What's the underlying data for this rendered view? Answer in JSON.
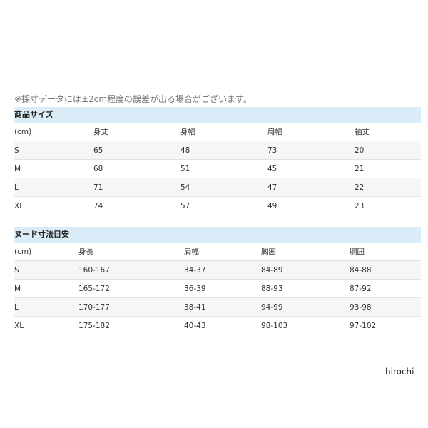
{
  "note": "※採寸データには±2cm程度の誤差が出る場合がございます。",
  "product_size": {
    "title": "商品サイズ",
    "headers": [
      "(cm)",
      "身丈",
      "身幅",
      "肩幅",
      "袖丈"
    ],
    "rows": [
      [
        "S",
        "65",
        "48",
        "73",
        "20"
      ],
      [
        "M",
        "68",
        "51",
        "45",
        "21"
      ],
      [
        "L",
        "71",
        "54",
        "47",
        "22"
      ],
      [
        "XL",
        "74",
        "57",
        "49",
        "23"
      ]
    ]
  },
  "nude_size": {
    "title": "ヌード寸法目安",
    "headers": [
      "(cm)",
      "身長",
      "肩幅",
      "胸囲",
      "胴囲"
    ],
    "rows": [
      [
        "S",
        "160-167",
        "34-37",
        "84-89",
        "84-88"
      ],
      [
        "M",
        "165-172",
        "36-39",
        "88-93",
        "87-92"
      ],
      [
        "L",
        "170-177",
        "38-41",
        "94-99",
        "93-98"
      ],
      [
        "XL",
        "175-182",
        "40-43",
        "98-103",
        "97-102"
      ]
    ]
  },
  "brand": "hirochi",
  "colors": {
    "band": "#d9ecf7"
  }
}
